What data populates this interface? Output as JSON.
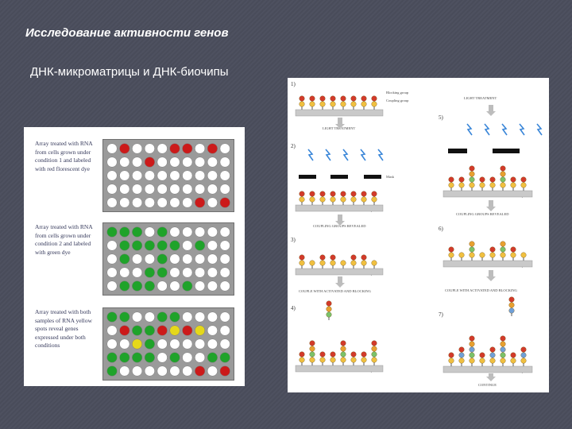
{
  "slide": {
    "title": "Исследование активности генов",
    "subtitle": "ДНК-микроматрицы и ДНК-биочипы"
  },
  "colors": {
    "background": "#4a4d5c",
    "red": "#cc1a1a",
    "green": "#1fa32a",
    "yellow": "#e5d81a",
    "white": "#ffffff",
    "grid_gray": "#9a9a9a"
  },
  "arrays": [
    {
      "caption": "Array treated with RNA from cells grown under condition 1 and labeled with red florescent dye",
      "rows": [
        "WRWWWRRWRW",
        "WWWRWWWWWW",
        "WWWWWWWWWW",
        "WWWWWWWWWW",
        "WWWWWWWRWR"
      ]
    },
    {
      "caption": "Array treated with RNA from cells grown under condition 2 and labeled with green dye",
      "rows": [
        "GGGWGWWWWW",
        "WGGGGGWGWW",
        "WGWWGWWWWW",
        "WWWGGWWWWW",
        "WGGGWWGWWW"
      ]
    },
    {
      "caption": "Array treated with both samples of RNA yellow spots reveal genes expressed under both conditions",
      "rows": [
        "GGWWGGWWWW",
        "WRGGRYRYWW",
        "WWYGWWWWWW",
        "GGGGWGWWGG",
        "GWWWWWWRWR"
      ]
    }
  ],
  "diagram": {
    "step_numbers": [
      "1)",
      "2)",
      "3)",
      "4)",
      "5)",
      "6)",
      "7)"
    ],
    "labels": {
      "blocking_group": "Blocking group",
      "coupling_group": "Coupling group",
      "glass_chip": "Glass chip",
      "light_treatment": "LIGHT TREATMENT",
      "mask": "Mask",
      "coupling_deblocked": "COUPLING GROUPS REVEALED",
      "couple_activated": "COUPLE WITH ACTIVATED AND BLOCKING",
      "continue": "CONTINUE"
    }
  }
}
